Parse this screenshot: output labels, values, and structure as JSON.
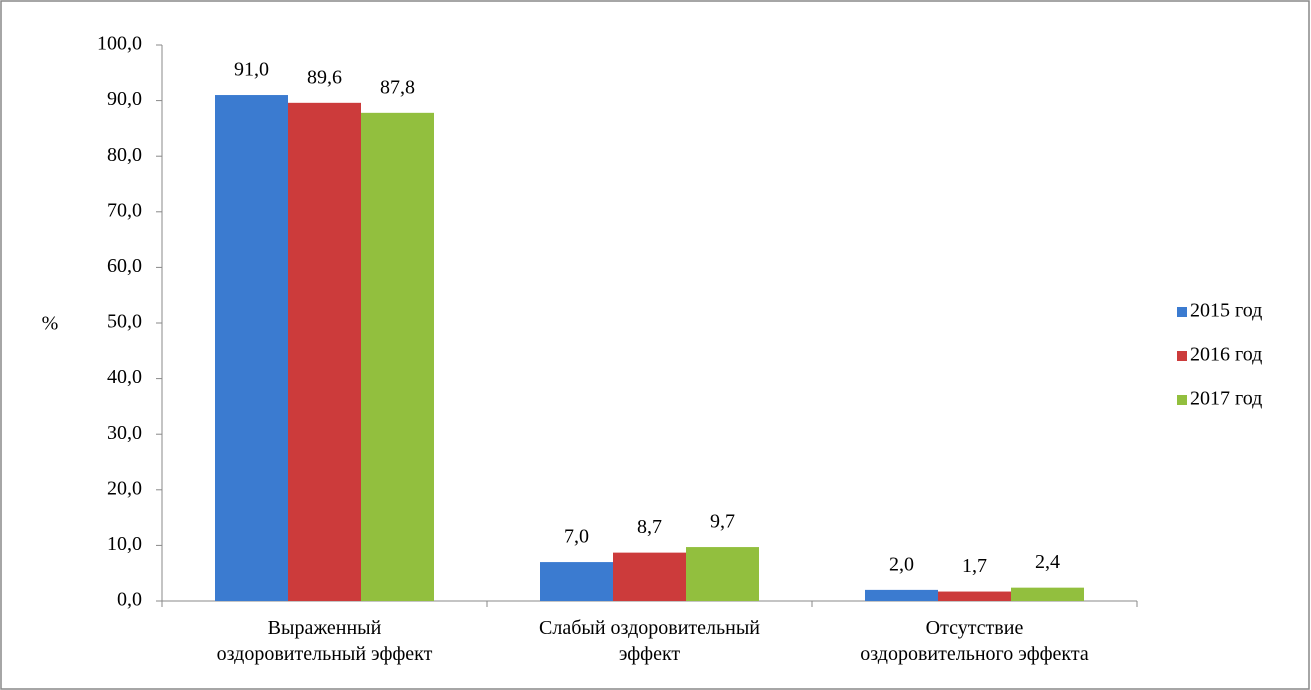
{
  "chart_data": {
    "type": "bar",
    "y_label": "%",
    "categories": [
      "Выраженный\nоздоровительный эффект",
      "Слабый оздоровительный\nэффект",
      "Отсутствие\nоздоровительного эффекта"
    ],
    "series": [
      {
        "name": "2015 год",
        "color": "#3b7bd0",
        "values": [
          91.0,
          7.0,
          2.0
        ],
        "value_labels": [
          "91,0",
          "7,0",
          "2,0"
        ]
      },
      {
        "name": "2016 год",
        "color": "#cc3b3b",
        "values": [
          89.6,
          8.7,
          1.7
        ],
        "value_labels": [
          "89,6",
          "8,7",
          "1,7"
        ]
      },
      {
        "name": "2017 год",
        "color": "#92bf3e",
        "values": [
          87.8,
          9.7,
          2.4
        ],
        "value_labels": [
          "87,8",
          "9,7",
          "2,4"
        ]
      }
    ],
    "ylim": [
      0,
      100
    ],
    "yticks": [
      {
        "value": 0,
        "label": "0,0"
      },
      {
        "value": 10,
        "label": "10,0"
      },
      {
        "value": 20,
        "label": "20,0"
      },
      {
        "value": 30,
        "label": "30,0"
      },
      {
        "value": 40,
        "label": "40,0"
      },
      {
        "value": 50,
        "label": "50,0"
      },
      {
        "value": 60,
        "label": "60,0"
      },
      {
        "value": 70,
        "label": "70,0"
      },
      {
        "value": 80,
        "label": "80,0"
      },
      {
        "value": 90,
        "label": "90,0"
      },
      {
        "value": 100,
        "label": "100,0"
      }
    ],
    "legend": "right"
  }
}
